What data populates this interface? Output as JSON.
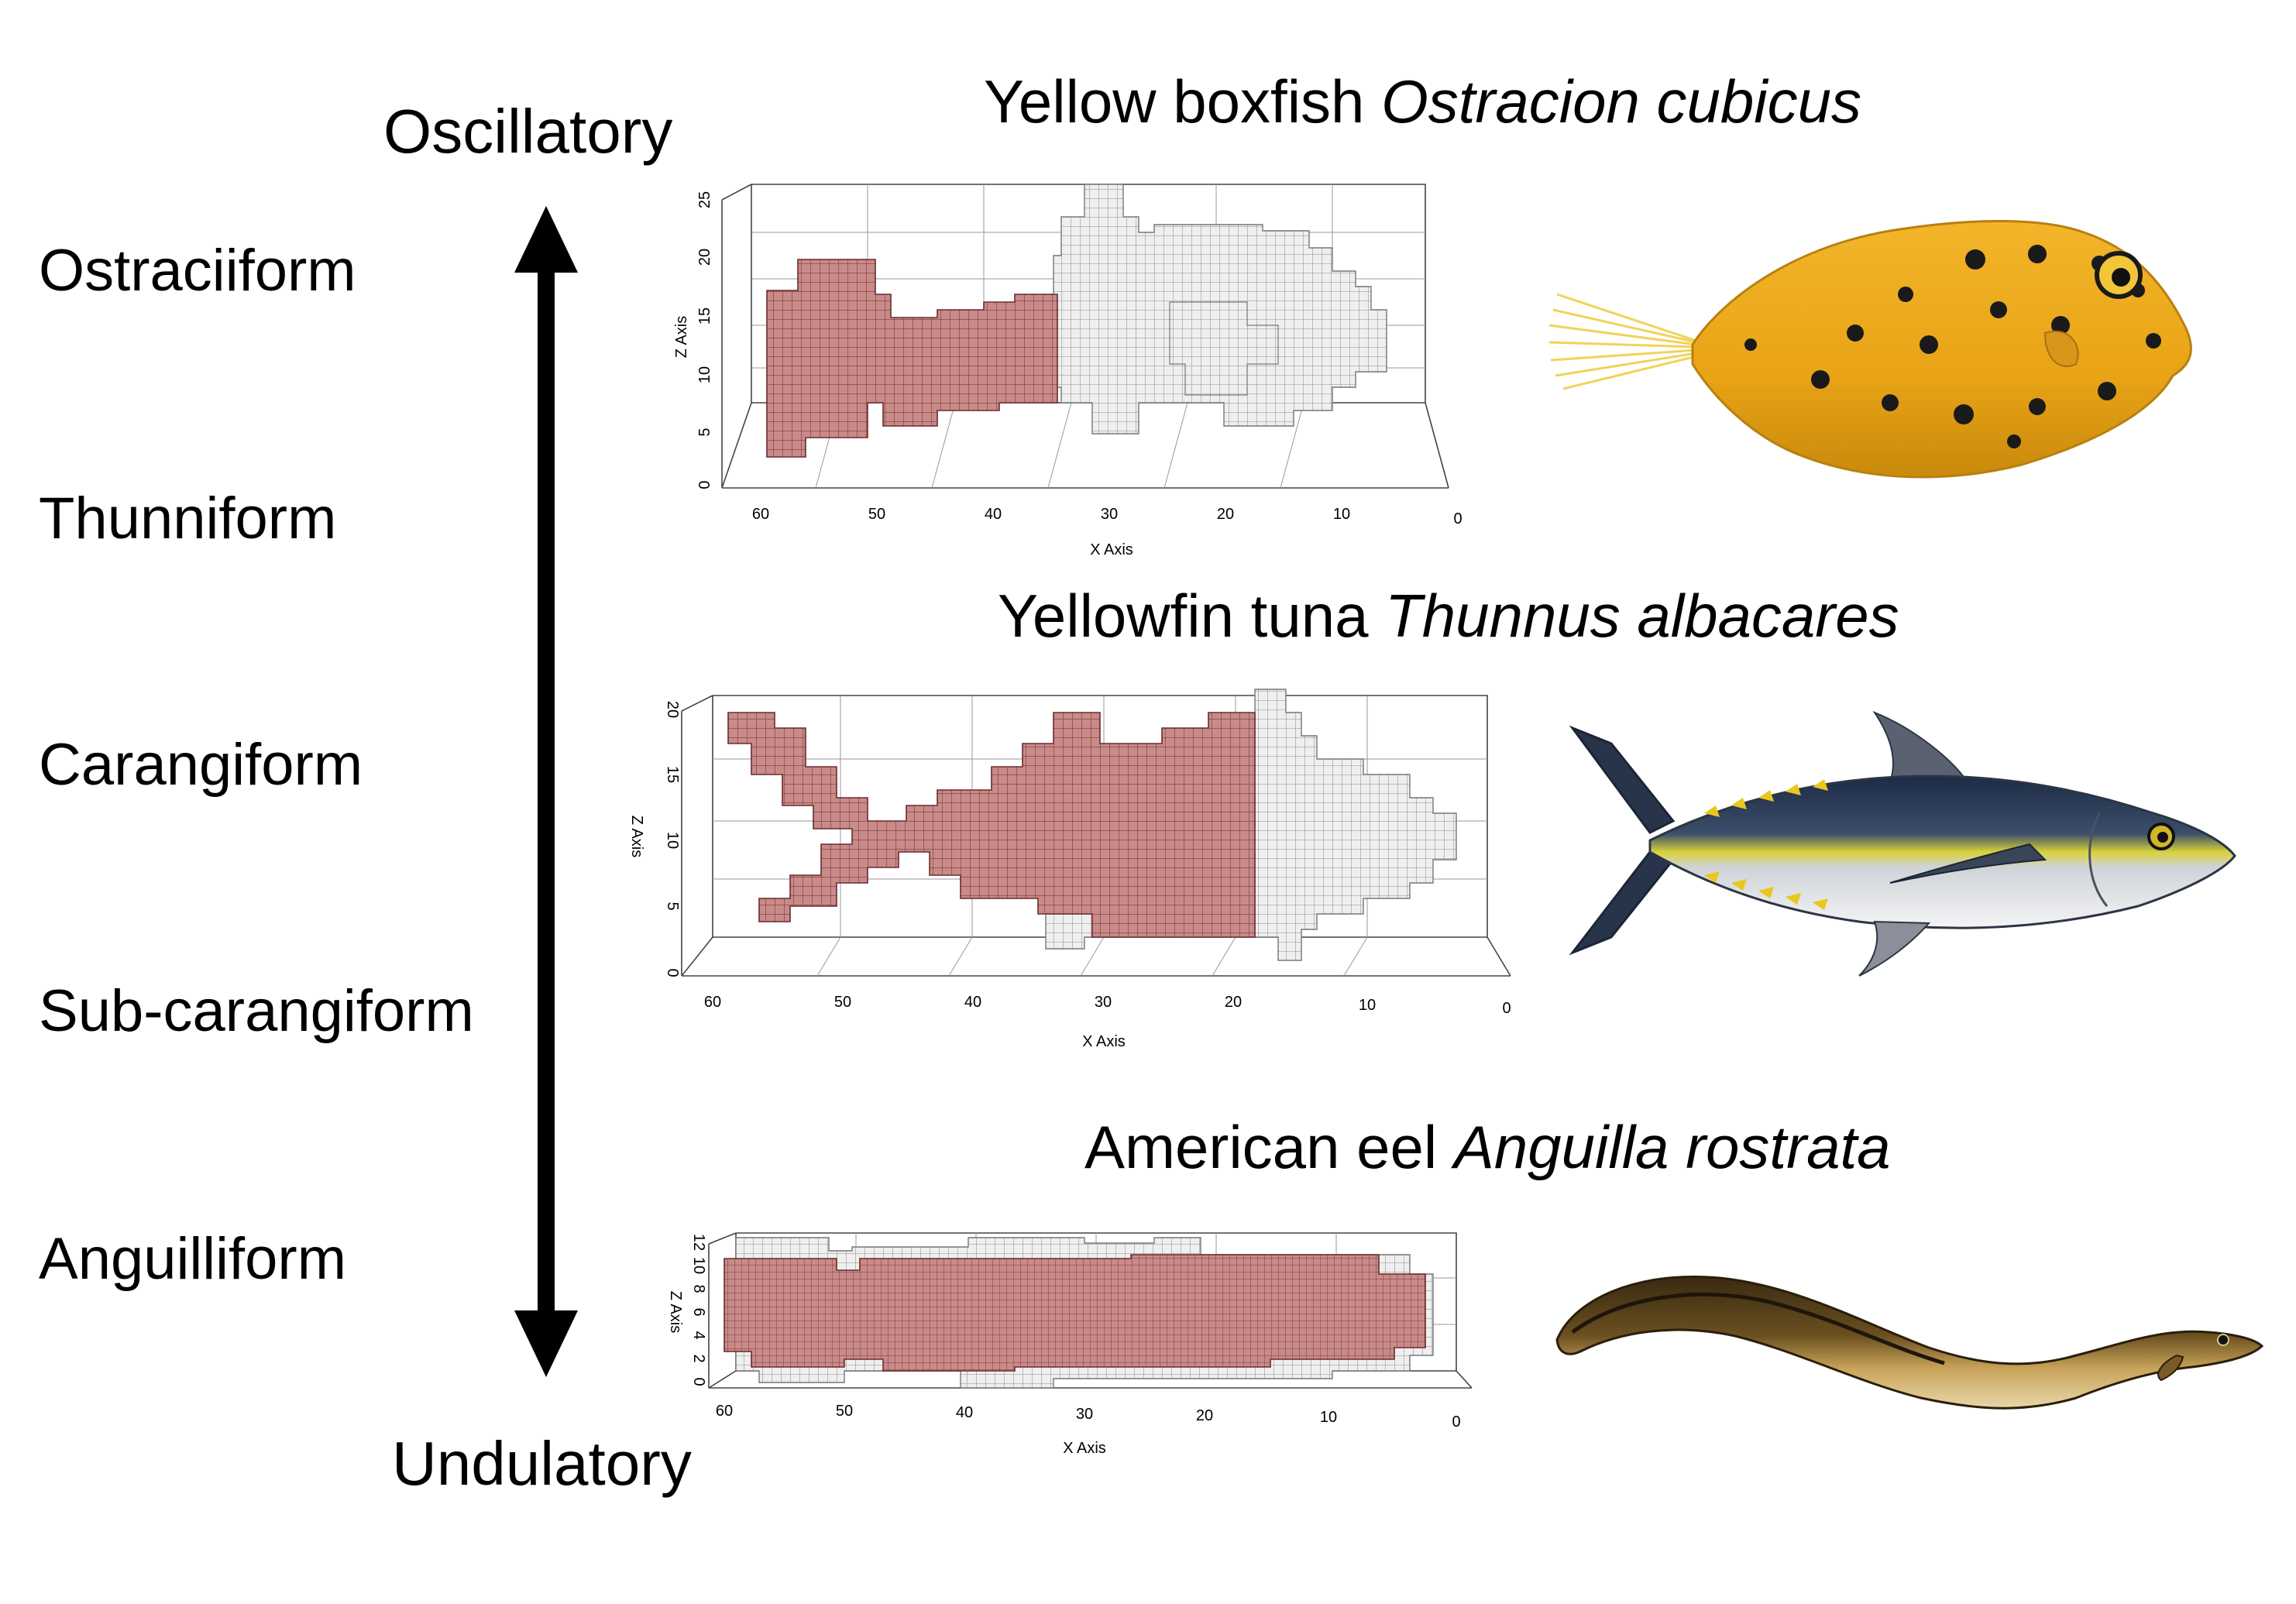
{
  "axis_ends": {
    "top": "Oscillatory",
    "bottom": "Undulatory"
  },
  "modes": [
    "Ostraciiform",
    "Thunniform",
    "Carangiform",
    "Sub-carangiform",
    "Anguilliform"
  ],
  "colors": {
    "muscle": "#c98a8a",
    "muscle_grid": "#7a3a3a",
    "body": "#e8e8e8",
    "body_grid": "#9a9a9a"
  },
  "species": [
    {
      "common": "Yellow boxfish ",
      "scientific": "Ostracion cubicus",
      "x_axis": {
        "label": "X Axis",
        "ticks": [
          "60",
          "50",
          "40",
          "30",
          "20",
          "10",
          "0"
        ]
      },
      "z_axis": {
        "label": "Z Axis",
        "ticks": [
          "0",
          "5",
          "10",
          "15",
          "20",
          "25"
        ]
      },
      "image": "yellow-boxfish"
    },
    {
      "common": "Yellowfin tuna ",
      "scientific": "Thunnus albacares",
      "x_axis": {
        "label": "X Axis",
        "ticks": [
          "60",
          "50",
          "40",
          "30",
          "20",
          "10",
          "0"
        ]
      },
      "z_axis": {
        "label": "Z Axis",
        "ticks": [
          "0",
          "5",
          "10",
          "15",
          "20"
        ]
      },
      "image": "yellowfin-tuna"
    },
    {
      "common": "American eel ",
      "scientific": "Anguilla rostrata",
      "x_axis": {
        "label": "X Axis",
        "ticks": [
          "60",
          "50",
          "40",
          "30",
          "20",
          "10",
          "0"
        ]
      },
      "z_axis": {
        "label": "Z Axis",
        "ticks": [
          "0",
          "2",
          "4",
          "6",
          "8",
          "10",
          "12"
        ]
      },
      "image": "american-eel"
    }
  ]
}
